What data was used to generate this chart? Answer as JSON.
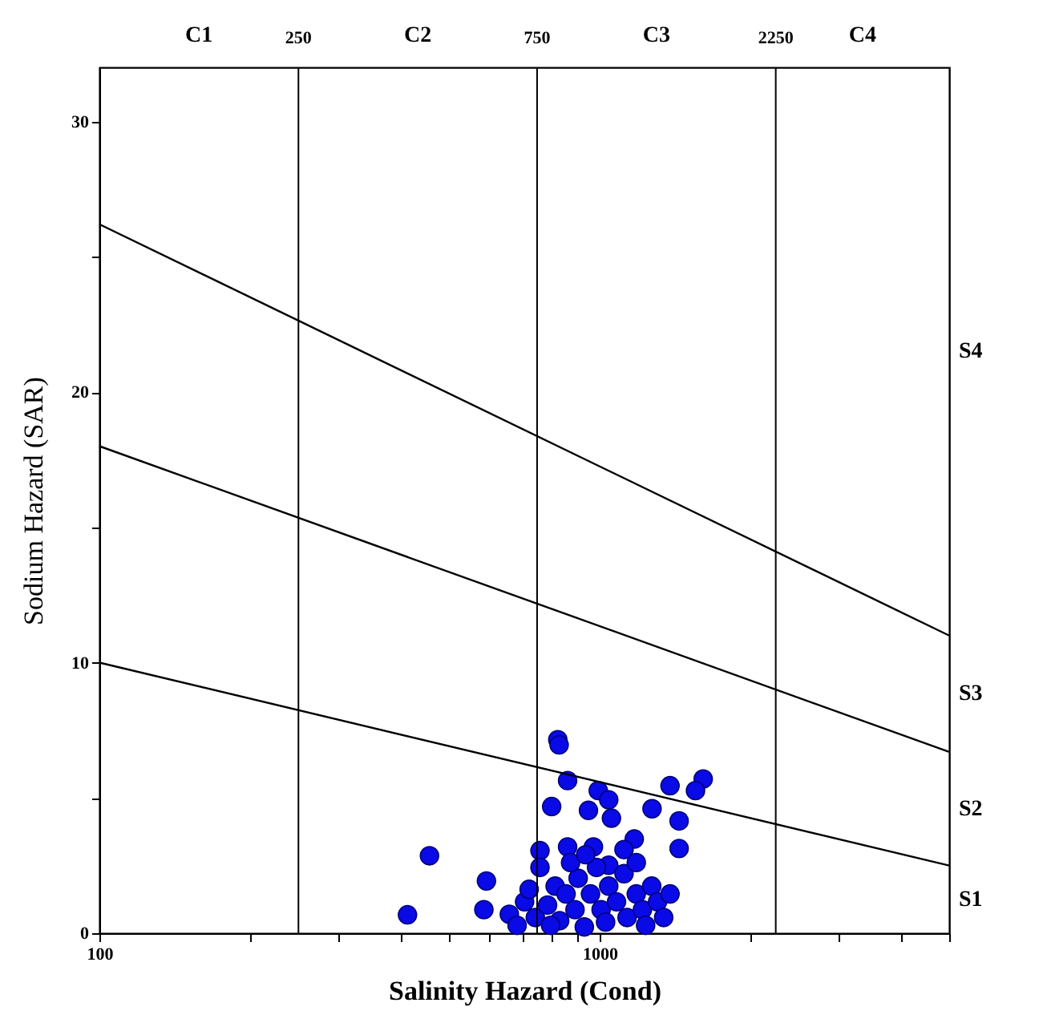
{
  "chart_data": {
    "type": "scatter",
    "xlabel": "Salinity Hazard (Cond)",
    "ylabel": "Sodium Hazard (SAR)",
    "log": "x",
    "grid": false,
    "marker": "circle",
    "xlim": [
      100,
      5000
    ],
    "ylim": [
      0,
      32
    ],
    "xticks": [
      100,
      {
        "value": 200,
        "label": null
      },
      {
        "value": 300,
        "label": null
      },
      {
        "value": 400,
        "label": null
      },
      {
        "value": 500,
        "label": null
      },
      {
        "value": 600,
        "label": null
      },
      {
        "value": 700,
        "label": null
      },
      {
        "value": 800,
        "label": null
      },
      {
        "value": 900,
        "label": null
      },
      1000,
      {
        "value": 2000,
        "label": null
      },
      {
        "value": 3000,
        "label": null
      },
      {
        "value": 4000,
        "label": null
      },
      {
        "value": 5000,
        "label": null
      }
    ],
    "yticks": [
      0,
      {
        "value": 5,
        "label": null
      },
      10,
      {
        "value": 15,
        "label": null
      },
      20,
      {
        "value": 25,
        "label": null
      },
      30
    ],
    "ref_lines": [
      {
        "axis": "x",
        "value": 250,
        "label": "250",
        "color": "#000000"
      },
      {
        "axis": "x",
        "value": 750,
        "label": "750",
        "color": "#000000"
      },
      {
        "axis": "x",
        "value": 2250,
        "label": "2250",
        "color": "#000000"
      }
    ],
    "annotations": [
      "C1",
      "C2",
      "C3",
      "C4",
      "S4",
      "S3",
      "S2",
      "S1"
    ],
    "series": [
      {
        "type": "line",
        "marker": "none",
        "color": "#000000",
        "x": [
          100,
          5000
        ],
        "values": [
          26.2,
          11.0
        ]
      },
      {
        "type": "line",
        "marker": "none",
        "color": "#000000",
        "x": [
          100,
          5000
        ],
        "values": [
          18.0,
          6.7
        ]
      },
      {
        "type": "line",
        "marker": "none",
        "color": "#000000",
        "x": [
          100,
          5000
        ],
        "values": [
          10.0,
          2.5
        ]
      },
      {
        "color": "#0a0ae6",
        "x": [
          825,
          830,
          863,
          994,
          1043,
          1383,
          1611,
          1555,
          802,
          950,
          1056,
          1273,
          1442,
          1442,
          1173,
          1119,
          1043,
          760,
          863,
          972,
          457,
          594,
          413,
          587,
          660,
          708,
          744,
          787,
          815,
          832,
          857,
          893,
          932,
          906,
          959,
          986,
          1007,
          1043,
          1081,
          1119,
          1135,
          1184,
          1218,
          1271,
          1306,
          1343,
          1383,
          875,
          760,
          723,
          684,
          798,
          1028,
          1236,
          938,
          1184
        ],
        "values": [
          7.15,
          6.96,
          5.64,
          5.27,
          4.93,
          5.45,
          5.7,
          5.27,
          4.68,
          4.54,
          4.25,
          4.6,
          4.15,
          3.13,
          3.48,
          3.09,
          2.51,
          3.05,
          3.19,
          3.19,
          2.86,
          1.93,
          0.68,
          0.87,
          0.7,
          1.16,
          0.58,
          1.04,
          1.74,
          0.46,
          1.45,
          0.87,
          0.23,
          2.03,
          1.45,
          2.43,
          0.87,
          1.74,
          1.16,
          2.2,
          0.58,
          1.45,
          0.87,
          1.74,
          1.16,
          0.58,
          1.45,
          2.61,
          2.43,
          1.62,
          0.29,
          0.29,
          0.41,
          0.29,
          2.9,
          2.61
        ]
      }
    ]
  }
}
